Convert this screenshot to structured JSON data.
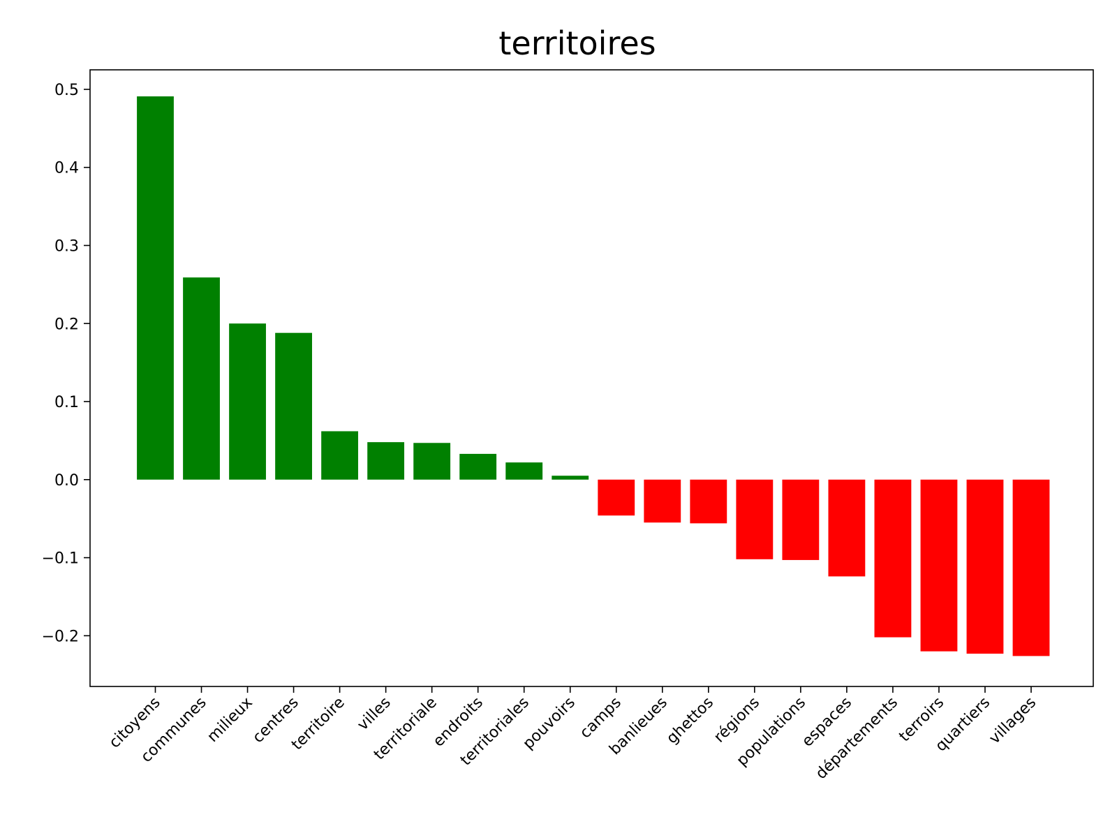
{
  "chart_data": {
    "type": "bar",
    "title": "territoires",
    "xlabel": "",
    "ylabel": "",
    "categories": [
      "citoyens",
      "communes",
      "milieux",
      "centres",
      "territoire",
      "villes",
      "territoriale",
      "endroits",
      "territoriales",
      "pouvoirs",
      "camps",
      "banlieues",
      "ghettos",
      "régions",
      "populations",
      "espaces",
      "départements",
      "terroirs",
      "quartiers",
      "villages"
    ],
    "values": [
      0.491,
      0.259,
      0.2,
      0.188,
      0.062,
      0.048,
      0.047,
      0.033,
      0.022,
      0.005,
      -0.046,
      -0.055,
      -0.056,
      -0.102,
      -0.103,
      -0.124,
      -0.202,
      -0.22,
      -0.223,
      -0.226
    ],
    "ylim": [
      -0.265,
      0.525
    ],
    "yticks": [
      0.5,
      0.4,
      0.3,
      0.2,
      0.1,
      0.0,
      -0.1,
      -0.2
    ],
    "ytick_labels": [
      "0.5",
      "0.4",
      "0.3",
      "0.2",
      "0.1",
      "0.0",
      "−0.1",
      "−0.2"
    ],
    "positive_color": "#008000",
    "negative_color": "#ff0000",
    "grid": false,
    "legend": "none"
  }
}
